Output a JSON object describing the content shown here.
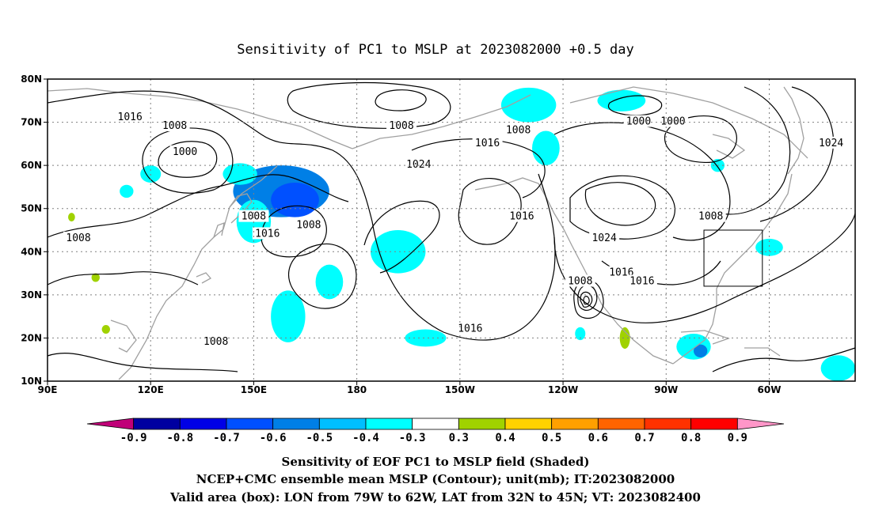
{
  "title": "Sensitivity of PC1 to MSLP at 2023082000 +0.5 day",
  "latitudes": [
    {
      "value": 80,
      "label": "80N"
    },
    {
      "value": 70,
      "label": "70N"
    },
    {
      "value": 60,
      "label": "60N"
    },
    {
      "value": 50,
      "label": "50N"
    },
    {
      "value": 40,
      "label": "40N"
    },
    {
      "value": 30,
      "label": "30N"
    },
    {
      "value": 20,
      "label": "20N"
    },
    {
      "value": 10,
      "label": "10N"
    }
  ],
  "longitudes": [
    {
      "value": 90,
      "label": "90E"
    },
    {
      "value": 120,
      "label": "120E"
    },
    {
      "value": 150,
      "label": "150E"
    },
    {
      "value": 180,
      "label": "180"
    },
    {
      "value": 210,
      "label": "150W"
    },
    {
      "value": 240,
      "label": "120W"
    },
    {
      "value": 270,
      "label": "90W"
    },
    {
      "value": 300,
      "label": "60W"
    }
  ],
  "lon_range": [
    90,
    325
  ],
  "lat_range": [
    10,
    80
  ],
  "contour_labels": [
    {
      "text": "1016",
      "lon": 114,
      "lat": 71
    },
    {
      "text": "1008",
      "lon": 127,
      "lat": 69
    },
    {
      "text": "1000",
      "lon": 130,
      "lat": 63
    },
    {
      "text": "1008",
      "lon": 99,
      "lat": 43
    },
    {
      "text": "1008",
      "lon": 150,
      "lat": 48
    },
    {
      "text": "1016",
      "lon": 154,
      "lat": 44
    },
    {
      "text": "1008",
      "lon": 166,
      "lat": 46
    },
    {
      "text": "1008",
      "lon": 139,
      "lat": 19
    },
    {
      "text": "1008",
      "lon": 193,
      "lat": 69
    },
    {
      "text": "1016",
      "lon": 218,
      "lat": 65
    },
    {
      "text": "1024",
      "lon": 198,
      "lat": 60
    },
    {
      "text": "1008",
      "lon": 227,
      "lat": 68
    },
    {
      "text": "1016",
      "lon": 228,
      "lat": 48
    },
    {
      "text": "1024",
      "lon": 252,
      "lat": 43
    },
    {
      "text": "1008",
      "lon": 245,
      "lat": 33
    },
    {
      "text": "1016",
      "lon": 257,
      "lat": 35
    },
    {
      "text": "1016",
      "lon": 263,
      "lat": 33
    },
    {
      "text": "1016",
      "lon": 213,
      "lat": 22
    },
    {
      "text": "1000",
      "lon": 262,
      "lat": 70
    },
    {
      "text": "1000",
      "lon": 272,
      "lat": 70
    },
    {
      "text": "1008",
      "lon": 283,
      "lat": 48
    },
    {
      "text": "1024",
      "lon": 318,
      "lat": 65
    }
  ],
  "shaded_blobs": [
    {
      "lon": 158,
      "lat": 54,
      "rx": 14,
      "ry": 6,
      "level": -0.5
    },
    {
      "lon": 162,
      "lat": 52,
      "rx": 7,
      "ry": 4,
      "level": -0.6
    },
    {
      "lon": 150,
      "lat": 47,
      "rx": 5,
      "ry": 5,
      "level": -0.4
    },
    {
      "lon": 146,
      "lat": 58,
      "rx": 5,
      "ry": 2.5,
      "level": -0.4
    },
    {
      "lon": 120,
      "lat": 58,
      "rx": 3,
      "ry": 2,
      "level": -0.4
    },
    {
      "lon": 113,
      "lat": 54,
      "rx": 2,
      "ry": 1.5,
      "level": -0.4
    },
    {
      "lon": 160,
      "lat": 25,
      "rx": 5,
      "ry": 6,
      "level": -0.4
    },
    {
      "lon": 172,
      "lat": 33,
      "rx": 4,
      "ry": 4,
      "level": -0.4
    },
    {
      "lon": 192,
      "lat": 40,
      "rx": 8,
      "ry": 5,
      "level": -0.4
    },
    {
      "lon": 200,
      "lat": 20,
      "rx": 6,
      "ry": 2,
      "level": -0.4
    },
    {
      "lon": 230,
      "lat": 74,
      "rx": 8,
      "ry": 4,
      "level": -0.4
    },
    {
      "lon": 257,
      "lat": 75,
      "rx": 7,
      "ry": 2.5,
      "level": -0.4
    },
    {
      "lon": 235,
      "lat": 64,
      "rx": 4,
      "ry": 4,
      "level": -0.4
    },
    {
      "lon": 300,
      "lat": 41,
      "rx": 4,
      "ry": 2,
      "level": -0.4
    },
    {
      "lon": 285,
      "lat": 60,
      "rx": 2,
      "ry": 1.5,
      "level": -0.4
    },
    {
      "lon": 278,
      "lat": 18,
      "rx": 5,
      "ry": 3,
      "level": -0.4
    },
    {
      "lon": 280,
      "lat": 17,
      "rx": 2,
      "ry": 1.5,
      "level": -0.5
    },
    {
      "lon": 320,
      "lat": 13,
      "rx": 5,
      "ry": 3,
      "level": -0.4
    },
    {
      "lon": 245,
      "lat": 21,
      "rx": 1.5,
      "ry": 1.5,
      "level": -0.4
    },
    {
      "lon": 258,
      "lat": 20,
      "rx": 1.5,
      "ry": 2.5,
      "level": 0.3
    },
    {
      "lon": 97,
      "lat": 48,
      "rx": 1,
      "ry": 1,
      "level": 0.3
    },
    {
      "lon": 104,
      "lat": 34,
      "rx": 1.2,
      "ry": 1,
      "level": 0.3
    },
    {
      "lon": 107,
      "lat": 22,
      "rx": 1.2,
      "ry": 1,
      "level": 0.3
    }
  ],
  "valid_box": {
    "lon_min": 281,
    "lon_max": 298,
    "lat_min": 32,
    "lat_max": 45
  },
  "colorbar": {
    "colors": [
      "#c00078",
      "#0000a0",
      "#0000e6",
      "#0050ff",
      "#007fe6",
      "#00bfff",
      "#00ffff",
      "#ffffff",
      "#a0d200",
      "#ffd200",
      "#ffa000",
      "#ff6400",
      "#ff3200",
      "#ff0000",
      "#ff96c8"
    ],
    "labels": [
      "-0.9",
      "-0.8",
      "-0.7",
      "-0.6",
      "-0.5",
      "-0.4",
      "-0.3",
      "0.3",
      "0.4",
      "0.5",
      "0.6",
      "0.7",
      "0.8",
      "0.9"
    ]
  },
  "level_colors": {
    "-0.6": "#0050ff",
    "-0.5": "#007fe6",
    "-0.4": "#00ffff",
    "0.3": "#a0d200"
  },
  "captions": {
    "line1": "Sensitivity of EOF PC1 to MSLP field (Shaded)",
    "line2": "NCEP+CMC ensemble mean MSLP (Contour); unit(mb); IT:2023082000",
    "line3": "Valid area (box): LON from 79W to 62W, LAT from 32N to 45N; VT: 2023082400"
  }
}
